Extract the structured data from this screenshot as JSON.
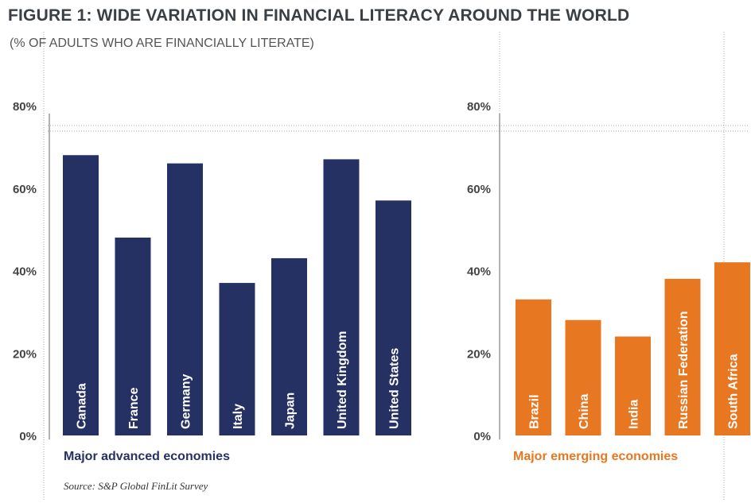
{
  "title": "FIGURE 1: WIDE VARIATION IN FINANCIAL LITERACY AROUND THE WORLD",
  "subtitle": "(% OF ADULTS WHO ARE FINANCIALLY LITERATE)",
  "source": "Source: S&P Global FinLit Survey",
  "chart_data": [
    {
      "type": "bar",
      "panel_label": "Major advanced economies",
      "color": "#253163",
      "categories": [
        "Canada",
        "France",
        "Germany",
        "Italy",
        "Japan",
        "United Kingdom",
        "United States"
      ],
      "values": [
        68,
        48,
        66,
        37,
        43,
        67,
        57
      ],
      "ylim": [
        0,
        80
      ],
      "yticks": [
        "0%",
        "20%",
        "40%",
        "60%",
        "80%"
      ],
      "grid": false
    },
    {
      "type": "bar",
      "panel_label": "Major emerging economies",
      "color": "#e87722",
      "categories": [
        "Brazil",
        "China",
        "India",
        "Russian Federation",
        "South Africa"
      ],
      "values": [
        33,
        28,
        24,
        38,
        42
      ],
      "ylim": [
        0,
        80
      ],
      "yticks": [
        "0%",
        "20%",
        "40%",
        "60%",
        "80%"
      ],
      "grid": false
    }
  ]
}
